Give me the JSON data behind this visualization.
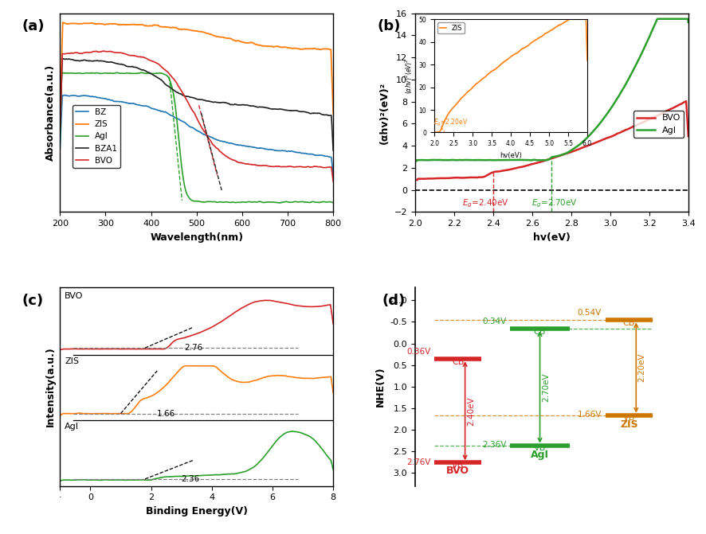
{
  "panel_a": {
    "title": "(a)",
    "xlabel": "Wavelength(nm)",
    "ylabel": "Absorbance(a.u.)",
    "xlim": [
      200,
      800
    ],
    "colors": {
      "BZ": "#1f77b4",
      "ZIS": "#ff7f0e",
      "AgI": "#2ca02c",
      "BZA1": "#222222",
      "BVO": "#d62728"
    }
  },
  "panel_b": {
    "title": "(b)",
    "xlabel": "hv(eV)",
    "ylabel": "(αhv)²(eV)²",
    "xlim": [
      2.0,
      3.4
    ],
    "ylim": [
      -2,
      16
    ],
    "bvo_eg": 2.4,
    "agi_eg": 2.7,
    "bvo_color": "#d62728",
    "agi_color": "#2ca02c",
    "inset": {
      "xlabel": "hv(eV)",
      "ylabel": "(αhv)²(eV·V)²",
      "xlim": [
        2.0,
        6.0
      ],
      "ylim": [
        0,
        50
      ],
      "zis_eg": 2.2,
      "zis_color": "#ff7f0e"
    }
  },
  "panel_c": {
    "title": "(c)",
    "xlabel": "Binding Energy(V)",
    "ylabel": "Intensity(a.u.)",
    "xlim": [
      -1,
      8
    ],
    "labels": [
      "BVO",
      "ZIS",
      "AgI"
    ],
    "colors": [
      "#d62728",
      "#ff7f0e",
      "#2ca02c"
    ],
    "vb_edges": [
      2.76,
      1.66,
      2.36
    ]
  },
  "panel_d": {
    "title": "(d)",
    "ylabel": "NHE(V)",
    "bvo_cb": 0.36,
    "bvo_vb": 2.76,
    "bvo_color": "#d62728",
    "agi_cb": -0.34,
    "agi_vb": 2.36,
    "agi_color": "#2ca02c",
    "zis_cb": -0.54,
    "zis_vb": 1.66,
    "zis_color": "#cc7700",
    "bvo_bg_label": "2.40eV",
    "agi_bg_label": "2.70eV",
    "zis_bg_label": "2.20eV"
  }
}
